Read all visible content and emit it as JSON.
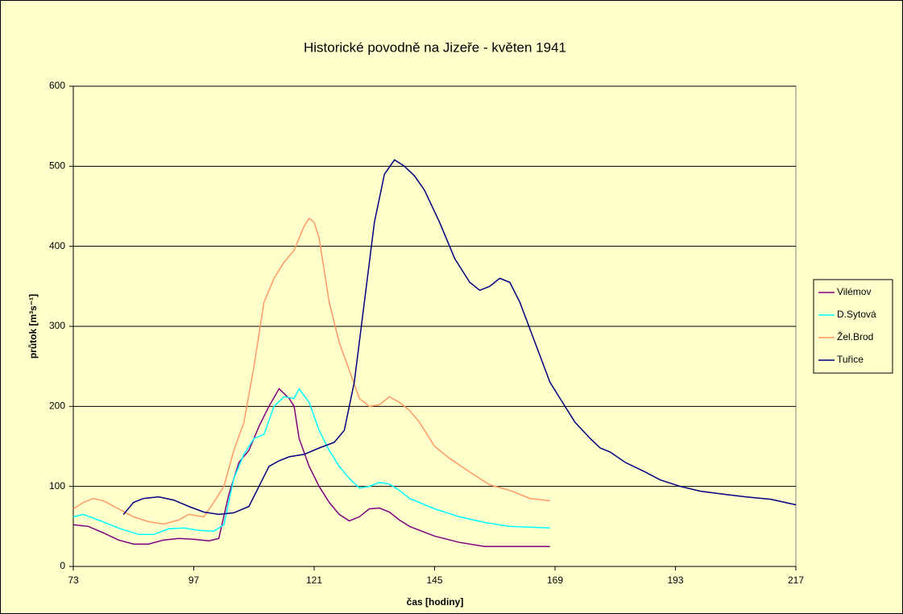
{
  "chart_data": {
    "type": "line",
    "title": "Historické povodně na Jizeře - květen 1941",
    "xlabel": "čas  [hodiny]",
    "ylabel": "průtok [m³s⁻¹]",
    "xlim": [
      73,
      217
    ],
    "xticks": [
      73,
      97,
      121,
      145,
      169,
      193,
      217
    ],
    "ylim": [
      0,
      600
    ],
    "yticks": [
      0,
      100,
      200,
      300,
      400,
      500,
      600
    ],
    "grid": true,
    "legend": "right",
    "series": [
      {
        "name": "Vilémov",
        "color": "#800080",
        "x": [
          73,
          76,
          79,
          82,
          85,
          88,
          91,
          94,
          97,
          100,
          102,
          104,
          106,
          108,
          110,
          112,
          114,
          116,
          117,
          118,
          120,
          122,
          124,
          126,
          128,
          130,
          132,
          134,
          136,
          138,
          140,
          145,
          150,
          155,
          160,
          168
        ],
        "values": [
          52,
          50,
          42,
          33,
          28,
          28,
          33,
          35,
          34,
          32,
          35,
          90,
          130,
          145,
          175,
          200,
          222,
          210,
          200,
          160,
          125,
          100,
          80,
          65,
          57,
          62,
          72,
          73,
          68,
          58,
          50,
          38,
          30,
          25,
          25,
          25
        ]
      },
      {
        "name": "D.Sytová",
        "color": "#00ffff",
        "x": [
          73,
          75,
          78,
          82,
          86,
          89,
          92,
          95,
          98,
          101,
          103,
          105,
          107,
          109,
          111,
          113,
          115,
          117,
          118,
          120,
          122,
          124,
          126,
          128,
          130,
          132,
          134,
          136,
          138,
          140,
          145,
          150,
          155,
          160,
          168
        ],
        "values": [
          62,
          65,
          58,
          48,
          40,
          40,
          47,
          48,
          45,
          44,
          52,
          110,
          140,
          160,
          165,
          200,
          212,
          210,
          222,
          205,
          170,
          145,
          125,
          110,
          98,
          100,
          105,
          103,
          95,
          85,
          72,
          62,
          55,
          50,
          48
        ]
      },
      {
        "name": "Žel.Brod",
        "color": "#ff9966",
        "x": [
          73,
          75,
          77,
          79,
          82,
          85,
          88,
          91,
          94,
          96,
          99,
          101,
          103,
          105,
          107,
          109,
          111,
          113,
          115,
          117,
          119,
          120,
          121,
          122,
          124,
          126,
          128,
          130,
          132,
          134,
          136,
          138,
          140,
          142,
          145,
          148,
          152,
          156,
          160,
          164,
          168
        ],
        "values": [
          72,
          80,
          85,
          82,
          72,
          62,
          56,
          53,
          58,
          65,
          62,
          80,
          100,
          145,
          180,
          250,
          330,
          360,
          380,
          395,
          425,
          435,
          430,
          410,
          330,
          280,
          245,
          210,
          200,
          202,
          212,
          205,
          195,
          180,
          150,
          135,
          118,
          102,
          95,
          85,
          82
        ]
      },
      {
        "name": "Tuřice",
        "color": "#000080",
        "x": [
          83,
          85,
          87,
          90,
          93,
          96,
          99,
          102,
          105,
          108,
          110,
          112,
          114,
          116,
          119,
          122,
          125,
          127,
          129,
          131,
          133,
          135,
          137,
          139,
          141,
          143,
          146,
          149,
          152,
          154,
          156,
          158,
          160,
          162,
          165,
          168,
          170,
          173,
          176,
          178,
          180,
          183,
          187,
          190,
          194,
          198,
          203,
          207,
          212,
          217
        ],
        "values": [
          65,
          80,
          85,
          87,
          83,
          75,
          68,
          65,
          67,
          75,
          100,
          125,
          132,
          137,
          140,
          148,
          155,
          170,
          230,
          330,
          430,
          490,
          508,
          500,
          488,
          470,
          430,
          385,
          355,
          345,
          350,
          360,
          355,
          330,
          280,
          230,
          210,
          180,
          160,
          148,
          143,
          130,
          118,
          108,
          100,
          94,
          90,
          87,
          84,
          77
        ]
      }
    ]
  }
}
